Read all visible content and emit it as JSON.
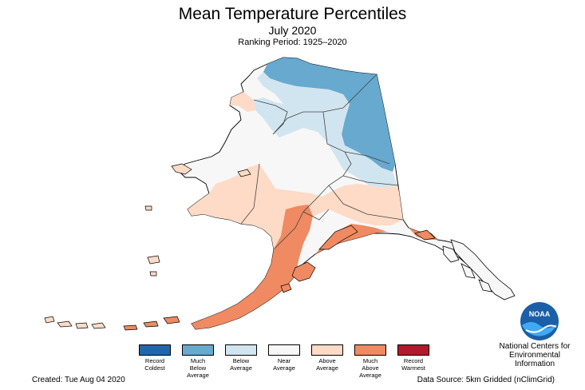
{
  "header": {
    "title": "Mean Temperature Percentiles",
    "subtitle": "July 2020",
    "ranking": "Ranking Period: 1925–2020"
  },
  "legend": [
    {
      "label": "Record\nColdest",
      "color": "#2166ac"
    },
    {
      "label": "Much\nBelow\nAverage",
      "color": "#67a9cf"
    },
    {
      "label": "Below\nAverage",
      "color": "#d1e5f0"
    },
    {
      "label": "Near\nAverage",
      "color": "#f7f7f7"
    },
    {
      "label": "Above\nAverage",
      "color": "#fddbc7"
    },
    {
      "label": "Much\nAbove\nAverage",
      "color": "#ef8a62"
    },
    {
      "label": "Record\nWarmest",
      "color": "#b2182b"
    }
  ],
  "footer": {
    "created": "Created: Tue Aug 04 2020",
    "source": "Data Source: 5km Gridded (nClimGrid)"
  },
  "logo": {
    "text": "NOAA",
    "org": "National Centers for\nEnvironmental\nInformation"
  }
}
